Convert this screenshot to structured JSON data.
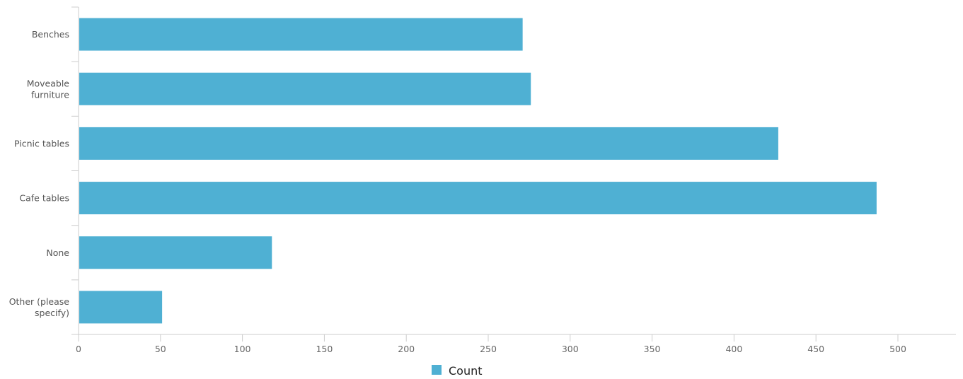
{
  "chart_data": {
    "type": "bar",
    "orientation": "horizontal",
    "categories": [
      [
        "Benches"
      ],
      [
        "Moveable",
        "furniture"
      ],
      [
        "Picnic tables"
      ],
      [
        "Cafe tables"
      ],
      [
        "None"
      ],
      [
        "Other (please",
        "specify)"
      ]
    ],
    "series": [
      {
        "name": "Count",
        "values": [
          271,
          276,
          427,
          487,
          118,
          51
        ]
      }
    ],
    "xlim": [
      0,
      535
    ],
    "xticks": [
      0,
      50,
      100,
      150,
      200,
      250,
      300,
      350,
      400,
      450,
      500
    ],
    "grid": false,
    "legend_position": "bottom-center"
  },
  "colors": {
    "bar": "#4fb0d3",
    "axis": "#cccccc"
  }
}
